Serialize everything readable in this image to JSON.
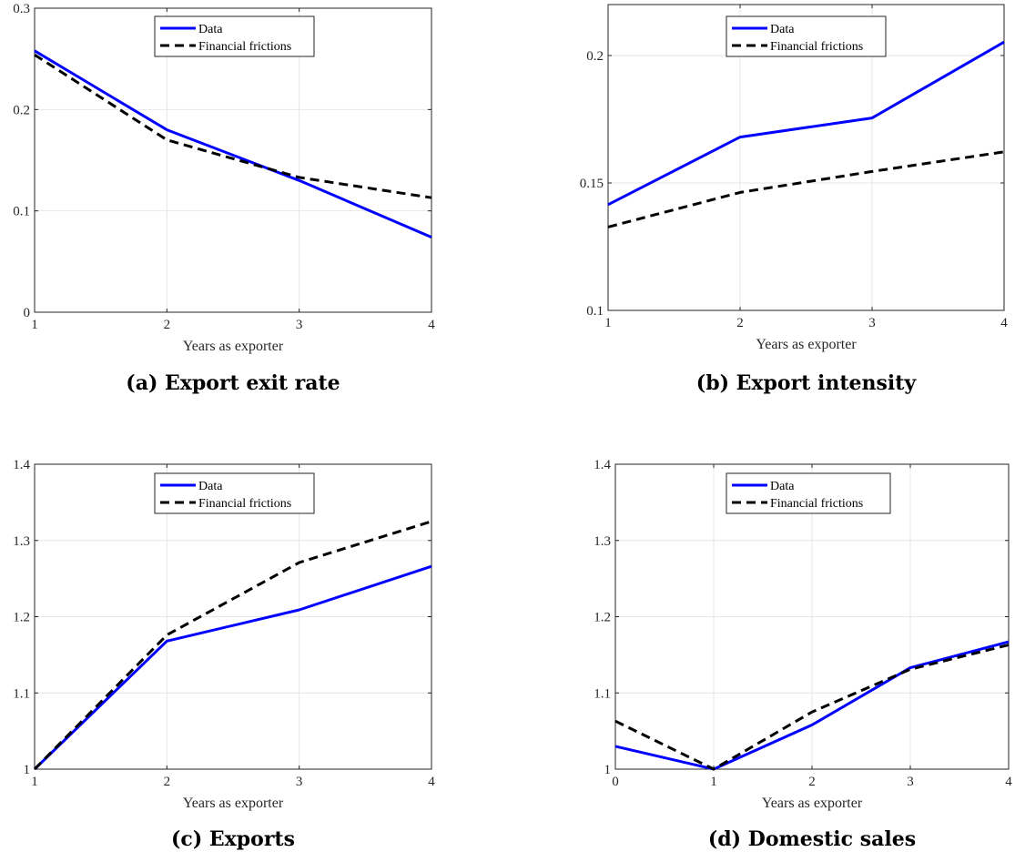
{
  "chart_data": [
    {
      "type": "line",
      "caption": "(a) Export exit rate",
      "xlabel": "Years as exporter",
      "ylabel": "",
      "xlim": [
        1,
        4
      ],
      "ylim": [
        0,
        0.3
      ],
      "xticks": [
        1,
        2,
        3,
        4
      ],
      "xtick_labels": [
        "1",
        "2",
        "3",
        "4"
      ],
      "yticks": [
        0,
        0.1,
        0.2,
        0.3
      ],
      "ytick_labels": [
        "0",
        "0.1",
        "0.2",
        "0.3"
      ],
      "grid": true,
      "legend_placement": "top-center",
      "x": [
        1,
        2,
        3,
        4
      ],
      "series": [
        {
          "name": "Data",
          "values": [
            0.258,
            0.18,
            0.13,
            0.074
          ],
          "color": "#0000ff",
          "style": "solid"
        },
        {
          "name": "Financial frictions",
          "values": [
            0.254,
            0.17,
            0.133,
            0.113
          ],
          "color": "#000000",
          "style": "dashed"
        }
      ]
    },
    {
      "type": "line",
      "caption": "(b) Export intensity",
      "xlabel": "Years as exporter",
      "ylabel": "",
      "xlim": [
        1,
        4
      ],
      "ylim": [
        0.1,
        0.22
      ],
      "xticks": [
        1,
        2,
        3,
        4
      ],
      "xtick_labels": [
        "1",
        "2",
        "3",
        "4"
      ],
      "yticks": [
        0.1,
        0.15,
        0.2
      ],
      "ytick_labels": [
        "0.1",
        "0.15",
        "0.2"
      ],
      "grid": true,
      "legend_placement": "top-center",
      "x": [
        1,
        2,
        3,
        4
      ],
      "series": [
        {
          "name": "Data",
          "values": [
            0.1415,
            0.168,
            0.1755,
            0.2053
          ],
          "color": "#0000ff",
          "style": "solid"
        },
        {
          "name": "Financial frictions",
          "values": [
            0.1327,
            0.1463,
            0.1545,
            0.1622
          ],
          "color": "#000000",
          "style": "dashed"
        }
      ]
    },
    {
      "type": "line",
      "caption": "(c) Exports",
      "xlabel": "Years as exporter",
      "ylabel": "",
      "xlim": [
        1,
        4
      ],
      "ylim": [
        1,
        1.4
      ],
      "xticks": [
        1,
        2,
        3,
        4
      ],
      "xtick_labels": [
        "1",
        "2",
        "3",
        "4"
      ],
      "yticks": [
        1,
        1.1,
        1.2,
        1.3,
        1.4
      ],
      "ytick_labels": [
        "1",
        "1.1",
        "1.2",
        "1.3",
        "1.4"
      ],
      "grid": true,
      "legend_placement": "top-center",
      "x": [
        1,
        2,
        3,
        4
      ],
      "series": [
        {
          "name": "Data",
          "values": [
            1.0,
            1.168,
            1.209,
            1.266
          ],
          "color": "#0000ff",
          "style": "solid"
        },
        {
          "name": "Financial frictions",
          "values": [
            1.0,
            1.176,
            1.271,
            1.325
          ],
          "color": "#000000",
          "style": "dashed"
        }
      ]
    },
    {
      "type": "line",
      "caption": "(d) Domestic sales",
      "xlabel": "Years as exporter",
      "ylabel": "",
      "xlim": [
        0,
        4
      ],
      "ylim": [
        1,
        1.4
      ],
      "xticks": [
        0,
        1,
        2,
        3,
        4
      ],
      "xtick_labels": [
        "0",
        "1",
        "2",
        "3",
        "4"
      ],
      "yticks": [
        1,
        1.1,
        1.2,
        1.3,
        1.4
      ],
      "ytick_labels": [
        "1",
        "1.1",
        "1.2",
        "1.3",
        "1.4"
      ],
      "grid": true,
      "legend_placement": "top-center",
      "x": [
        0,
        1,
        2,
        3,
        4
      ],
      "series": [
        {
          "name": "Data",
          "values": [
            1.03,
            1.0,
            1.058,
            1.133,
            1.167
          ],
          "color": "#0000ff",
          "style": "solid"
        },
        {
          "name": "Financial frictions",
          "values": [
            1.063,
            1.0,
            1.075,
            1.131,
            1.163
          ],
          "color": "#000000",
          "style": "dashed"
        }
      ]
    }
  ]
}
